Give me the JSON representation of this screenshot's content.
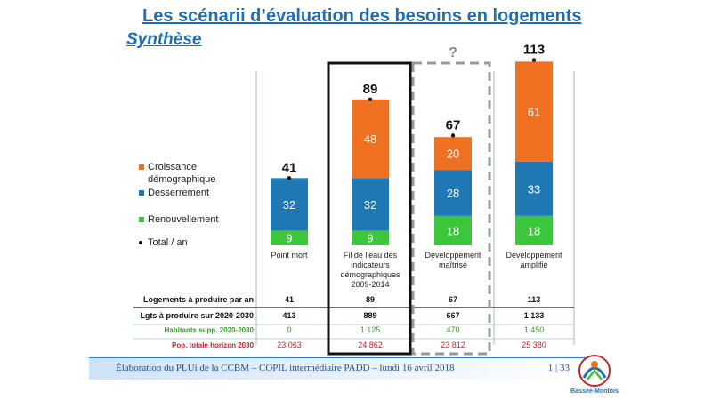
{
  "title": "Les scénarii d’évaluation des besoins en logements",
  "subtitle": "Synthèse",
  "question_mark": "?",
  "footer": {
    "text": "Élaboration du PLUi de la CCBM – COPIL intermédiaire PADD – lundi 16 avril 2018",
    "page": "1 | 33"
  },
  "logo": {
    "text": "Bassée-Montois"
  },
  "colors": {
    "croissance": "#f07022",
    "desserrement": "#1f77b4",
    "renouvellement": "#3cc63c",
    "title": "#1f6fb6",
    "habitants": "#3a9a2a",
    "pop": "#c0282e"
  },
  "chart_data": {
    "type": "bar",
    "stacked": true,
    "categories": [
      "Point mort",
      "Fil de l'eau des indicateurs démographiques 2009-2014",
      "Développement maîtrisé",
      "Développement amplifié"
    ],
    "series": [
      {
        "name": "Renouvellement",
        "values": [
          9,
          9,
          18,
          18
        ]
      },
      {
        "name": "Desserrement",
        "values": [
          32,
          32,
          28,
          33
        ]
      },
      {
        "name": "Croissance démographique",
        "values": [
          0,
          48,
          20,
          61
        ]
      }
    ],
    "totals": [
      41,
      89,
      67,
      113
    ],
    "total_label": "Total / an",
    "legend": [
      "Croissance démographique",
      "Desserrement",
      "Renouvellement",
      "Total / an"
    ],
    "legend_position": "left",
    "grid": false
  },
  "table": {
    "rows": [
      {
        "label": "Logements à produire par an",
        "values": [
          "41",
          "89",
          "67",
          "113"
        ],
        "style": "normal"
      },
      {
        "label": "Lgts à produire sur  2020-2030",
        "values": [
          "413",
          "889",
          "667",
          "1 133"
        ],
        "style": "normal"
      },
      {
        "label": "Habitants supp. 2020-2030",
        "values": [
          "0",
          "1 125",
          "470",
          "1 450"
        ],
        "style": "habitants"
      },
      {
        "label": "Pop. totale horizon 2030",
        "values": [
          "23 063",
          "24 862",
          "23 812",
          "25 380"
        ],
        "style": "pop"
      }
    ]
  }
}
